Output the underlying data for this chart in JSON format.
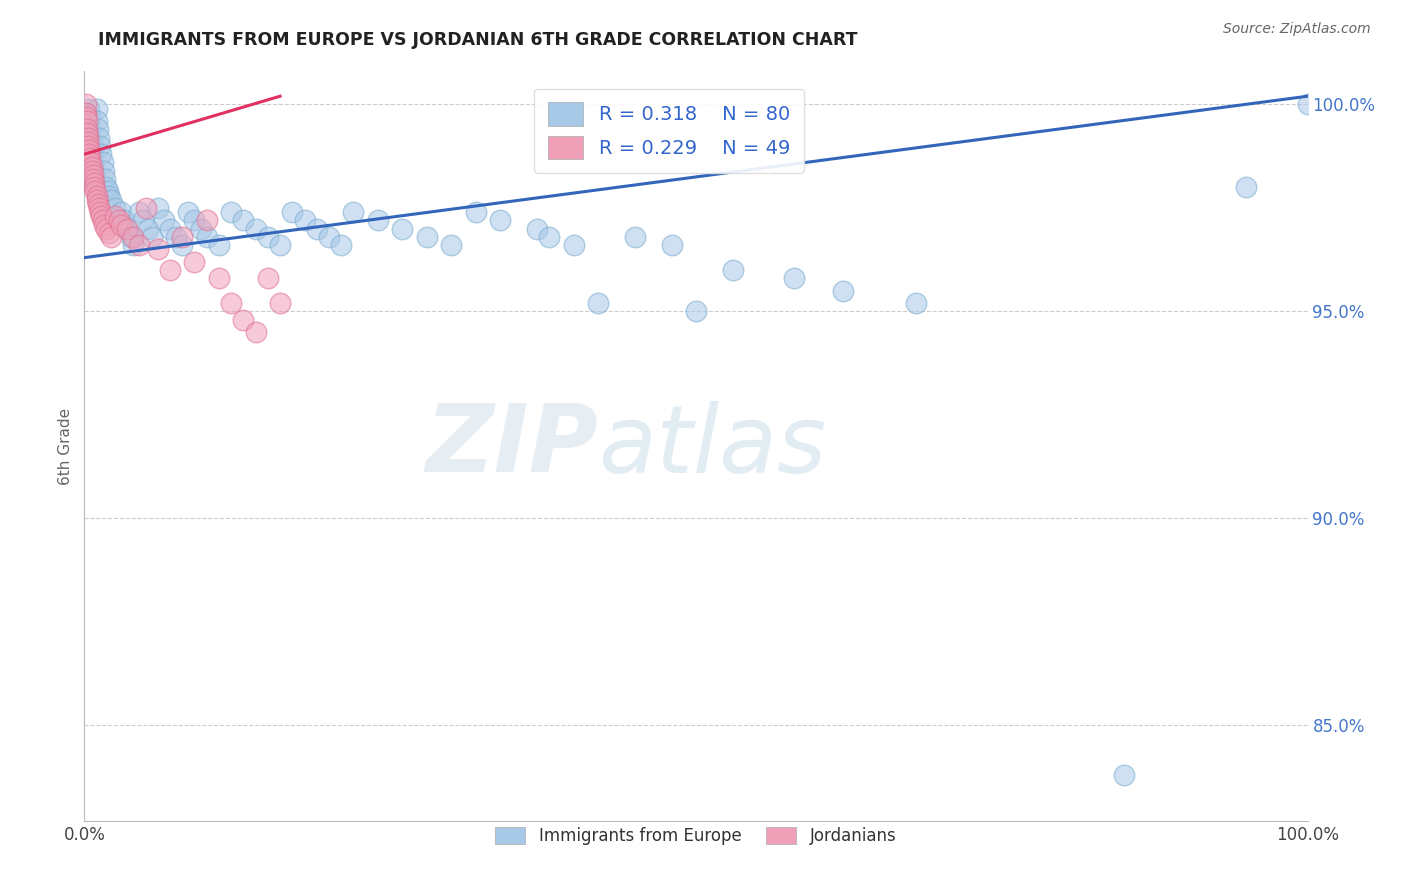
{
  "title": "IMMIGRANTS FROM EUROPE VS JORDANIAN 6TH GRADE CORRELATION CHART",
  "source_text": "Source: ZipAtlas.com",
  "ylabel": "6th Grade",
  "xlim": [
    0.0,
    1.0
  ],
  "ylim": [
    0.827,
    1.008
  ],
  "yticks": [
    0.85,
    0.9,
    0.95,
    1.0
  ],
  "ytick_labels": [
    "85.0%",
    "90.0%",
    "95.0%",
    "100.0%"
  ],
  "xticks": [
    0.0,
    0.5,
    1.0
  ],
  "xtick_labels": [
    "0.0%",
    "",
    "100.0%"
  ],
  "legend_r_blue": "0.318",
  "legend_n_blue": "80",
  "legend_r_pink": "0.229",
  "legend_n_pink": "49",
  "legend_label_blue": "Immigrants from Europe",
  "legend_label_pink": "Jordanians",
  "blue_color": "#a8c8e8",
  "pink_color": "#f0a0b8",
  "blue_edge_color": "#7aabcf",
  "pink_edge_color": "#e07090",
  "blue_line_color": "#3366bb",
  "pink_line_color": "#e03060",
  "blue_scatter_x": [
    0.001,
    0.001,
    0.002,
    0.002,
    0.003,
    0.003,
    0.004,
    0.004,
    0.005,
    0.005,
    0.006,
    0.006,
    0.007,
    0.007,
    0.008,
    0.009,
    0.01,
    0.01,
    0.011,
    0.012,
    0.013,
    0.014,
    0.015,
    0.016,
    0.017,
    0.018,
    0.019,
    0.02,
    0.022,
    0.025,
    0.03,
    0.032,
    0.035,
    0.038,
    0.04,
    0.045,
    0.048,
    0.052,
    0.055,
    0.06,
    0.065,
    0.07,
    0.075,
    0.08,
    0.085,
    0.09,
    0.095,
    0.1,
    0.11,
    0.12,
    0.13,
    0.14,
    0.15,
    0.16,
    0.17,
    0.18,
    0.19,
    0.2,
    0.21,
    0.22,
    0.24,
    0.26,
    0.28,
    0.3,
    0.32,
    0.34,
    0.37,
    0.38,
    0.4,
    0.42,
    0.45,
    0.48,
    0.5,
    0.53,
    0.58,
    0.62,
    0.68,
    0.85,
    0.95,
    1.0
  ],
  "blue_scatter_y": [
    0.998,
    0.995,
    0.993,
    0.99,
    0.988,
    0.985,
    0.983,
    0.999,
    0.997,
    0.994,
    0.991,
    0.989,
    0.987,
    0.985,
    0.983,
    0.981,
    0.999,
    0.996,
    0.994,
    0.992,
    0.99,
    0.988,
    0.986,
    0.984,
    0.982,
    0.98,
    0.979,
    0.978,
    0.977,
    0.975,
    0.974,
    0.972,
    0.97,
    0.968,
    0.966,
    0.974,
    0.972,
    0.97,
    0.968,
    0.975,
    0.972,
    0.97,
    0.968,
    0.966,
    0.974,
    0.972,
    0.97,
    0.968,
    0.966,
    0.974,
    0.972,
    0.97,
    0.968,
    0.966,
    0.974,
    0.972,
    0.97,
    0.968,
    0.966,
    0.974,
    0.972,
    0.97,
    0.968,
    0.966,
    0.974,
    0.972,
    0.97,
    0.968,
    0.966,
    0.952,
    0.968,
    0.966,
    0.95,
    0.96,
    0.958,
    0.955,
    0.952,
    0.838,
    0.98,
    1.0
  ],
  "pink_scatter_x": [
    0.001,
    0.001,
    0.001,
    0.002,
    0.002,
    0.002,
    0.003,
    0.003,
    0.003,
    0.004,
    0.004,
    0.005,
    0.005,
    0.006,
    0.006,
    0.007,
    0.007,
    0.008,
    0.008,
    0.009,
    0.01,
    0.01,
    0.011,
    0.012,
    0.013,
    0.014,
    0.015,
    0.016,
    0.018,
    0.02,
    0.022,
    0.025,
    0.028,
    0.03,
    0.035,
    0.04,
    0.045,
    0.05,
    0.06,
    0.07,
    0.08,
    0.09,
    0.1,
    0.11,
    0.12,
    0.13,
    0.14,
    0.15,
    0.16
  ],
  "pink_scatter_y": [
    1.0,
    0.998,
    0.997,
    0.996,
    0.994,
    0.993,
    0.992,
    0.991,
    0.99,
    0.989,
    0.988,
    0.987,
    0.986,
    0.985,
    0.984,
    0.983,
    0.982,
    0.981,
    0.98,
    0.979,
    0.978,
    0.977,
    0.976,
    0.975,
    0.974,
    0.973,
    0.972,
    0.971,
    0.97,
    0.969,
    0.968,
    0.973,
    0.972,
    0.971,
    0.97,
    0.968,
    0.966,
    0.975,
    0.965,
    0.96,
    0.968,
    0.962,
    0.972,
    0.958,
    0.952,
    0.948,
    0.945,
    0.958,
    0.952
  ],
  "blue_trend_x": [
    0.0,
    1.0
  ],
  "blue_trend_y": [
    0.963,
    1.002
  ],
  "pink_trend_x": [
    0.0,
    0.16
  ],
  "pink_trend_y": [
    0.988,
    1.002
  ],
  "watermark_zip": "ZIP",
  "watermark_atlas": "atlas",
  "background_color": "#ffffff",
  "grid_color": "#cccccc",
  "grid_style": "--",
  "title_color": "#222222",
  "ytick_color": "#4477cc",
  "xtick_color": "#444444",
  "ylabel_color": "#666666",
  "source_color": "#666666",
  "legend_text_color": "#3366cc"
}
